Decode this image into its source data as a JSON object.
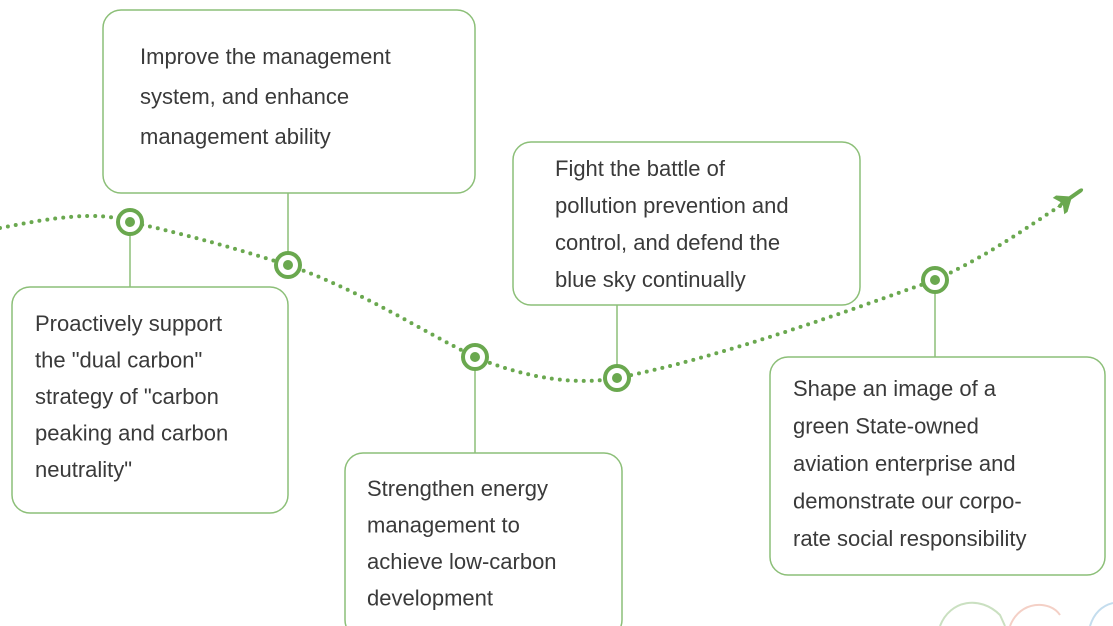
{
  "nodes": [
    {
      "lines": [
        "Improve the management",
        "system, and enhance",
        "management ability"
      ]
    },
    {
      "lines": [
        "Proactively support",
        "the \"dual carbon\"",
        "strategy of  \"carbon",
        "peaking and carbon",
        "neutrality\""
      ]
    },
    {
      "lines": [
        "Strengthen energy",
        "management to",
        "achieve low-carbon",
        "development"
      ]
    },
    {
      "lines": [
        "Fight the battle of",
        "pollution prevention and",
        "control, and defend the",
        "blue sky continually"
      ]
    },
    {
      "lines": [
        "Shape an image of a",
        "green State-owned",
        "aviation enterprise and",
        "demonstrate our corpo-",
        "rate social responsibility"
      ]
    }
  ]
}
